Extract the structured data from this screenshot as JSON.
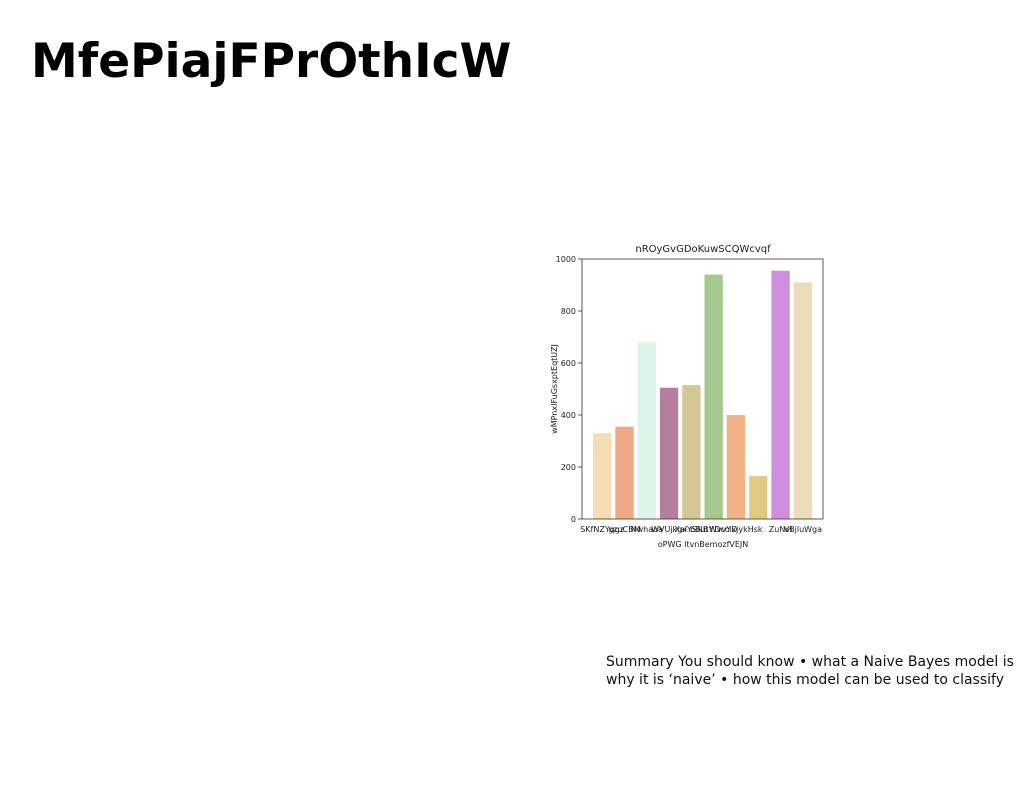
{
  "slide": {
    "title": "MfePiajFPrOthIcW",
    "summary": "Summary You should know • what a Naive Bayes model is why it is ‘naive’ • how this model can be used to classify"
  },
  "chart_data": {
    "type": "bar",
    "title": "nROyGvGDoKuwSCQWcvqf",
    "xlabel": "oPWG ltvnBemozfVEJN",
    "ylabel": "wMPnxIFuGsxptEqtUZJ",
    "categories": [
      "SKfNZYqgz",
      "gzuCBM",
      "Nwhaoa",
      "WVUjkgx",
      "XalYSNB",
      "bButWvvYD",
      "YDcclxjykHsk",
      "",
      "ZuNvl",
      "VBjluWga"
    ],
    "values": [
      330,
      355,
      680,
      505,
      515,
      940,
      400,
      165,
      955,
      910
    ],
    "colors": [
      "#f4ddb1",
      "#efa883",
      "#ddf4e6",
      "#b47f9c",
      "#d5c793",
      "#a5c88e",
      "#f1b386",
      "#dfca81",
      "#cf8ddf",
      "#ebdcbb"
    ],
    "yticks": [
      0,
      200,
      400,
      600,
      800,
      1000
    ],
    "ylim": [
      0,
      1000
    ],
    "grid": false
  }
}
